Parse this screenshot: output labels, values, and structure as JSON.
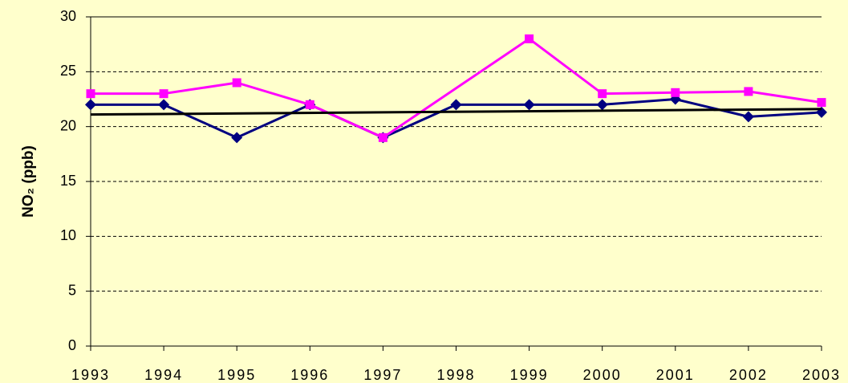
{
  "chart_data": {
    "type": "line",
    "ylabel": "NO₂ (ppb)",
    "xlim": [
      1993,
      2003
    ],
    "xticks": [
      1993,
      1994,
      1995,
      1996,
      1997,
      1998,
      1999,
      2000,
      2001,
      2002,
      2003
    ],
    "ylim": [
      0,
      30
    ],
    "yticks": [
      0,
      5,
      10,
      15,
      20,
      25,
      30
    ],
    "grid": true,
    "series": [
      {
        "color": "#000080",
        "marker": "diamond",
        "x": [
          1993,
          1994,
          1995,
          1996,
          1997,
          1998,
          1999,
          2000,
          2001,
          2002,
          2003
        ],
        "values": [
          22,
          22,
          19,
          22,
          19,
          22,
          22,
          22,
          22.5,
          20.9,
          21.3
        ]
      },
      {
        "color": "#ff00ff",
        "marker": "square",
        "x": [
          1993,
          1994,
          1995,
          1996,
          1997,
          1999,
          2000,
          2001,
          2002,
          2003
        ],
        "values": [
          23,
          23,
          24,
          22,
          19,
          28,
          23,
          23.1,
          23.2,
          22.2
        ]
      },
      {
        "color": "#000000",
        "x": [
          1993,
          2003
        ],
        "values": [
          21.1,
          21.6
        ]
      }
    ]
  }
}
